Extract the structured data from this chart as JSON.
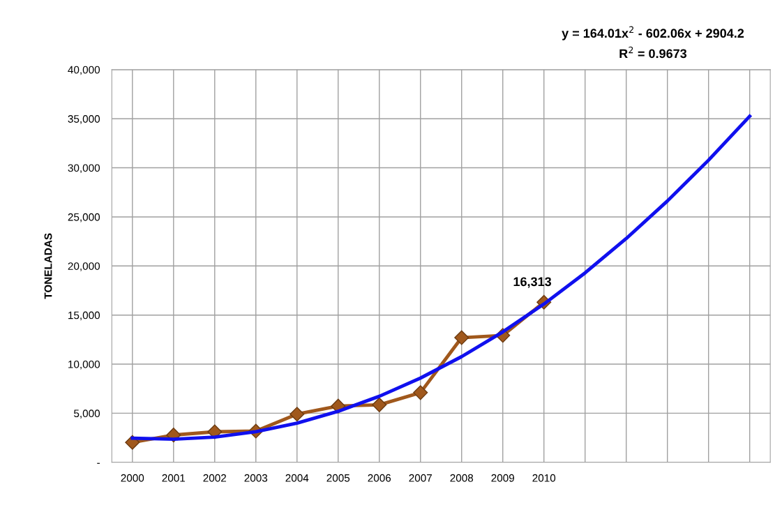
{
  "chart_data": {
    "type": "line",
    "ylabel": "TONELADAS",
    "categories": [
      "2000",
      "2001",
      "2002",
      "2003",
      "2004",
      "2005",
      "2006",
      "2007",
      "2008",
      "2009",
      "2010",
      null,
      null,
      null,
      null,
      null
    ],
    "series": [
      {
        "color": "#a0581c",
        "marker": "diamond",
        "values": [
          2030,
          2780,
          3110,
          3180,
          4910,
          5730,
          5860,
          7100,
          12700,
          12930,
          16313,
          null,
          null,
          null,
          null,
          null
        ],
        "value_labels": [
          null,
          null,
          null,
          null,
          null,
          null,
          null,
          null,
          null,
          null,
          "16,313",
          null,
          null,
          null,
          null,
          null
        ]
      },
      {
        "color": "#1010ee",
        "marker": "none",
        "values": [
          2466,
          2356,
          2574,
          3120,
          3994,
          5196,
          6726,
          8584,
          10770,
          13285,
          16127,
          19297,
          22795,
          26621,
          30776,
          35258
        ]
      }
    ],
    "annotations": [
      "y = 164.01x$^{2}$ - 602.06x + 2904.2",
      "R$^{2}$ = 0.9673"
    ],
    "ylim": [
      0,
      40000
    ],
    "yticks": [
      {
        "value": 0,
        "label": "-"
      },
      {
        "value": 5000,
        "label": "5,000"
      },
      {
        "value": 10000,
        "label": "10,000"
      },
      {
        "value": 15000,
        "label": "15,000"
      },
      {
        "value": 20000,
        "label": "20,000"
      },
      {
        "value": 25000,
        "label": "25,000"
      },
      {
        "value": 30000,
        "label": "30,000"
      },
      {
        "value": 35000,
        "label": "35,000"
      },
      {
        "value": 40000,
        "label": "40,000"
      }
    ],
    "grid": true,
    "legend": false
  }
}
